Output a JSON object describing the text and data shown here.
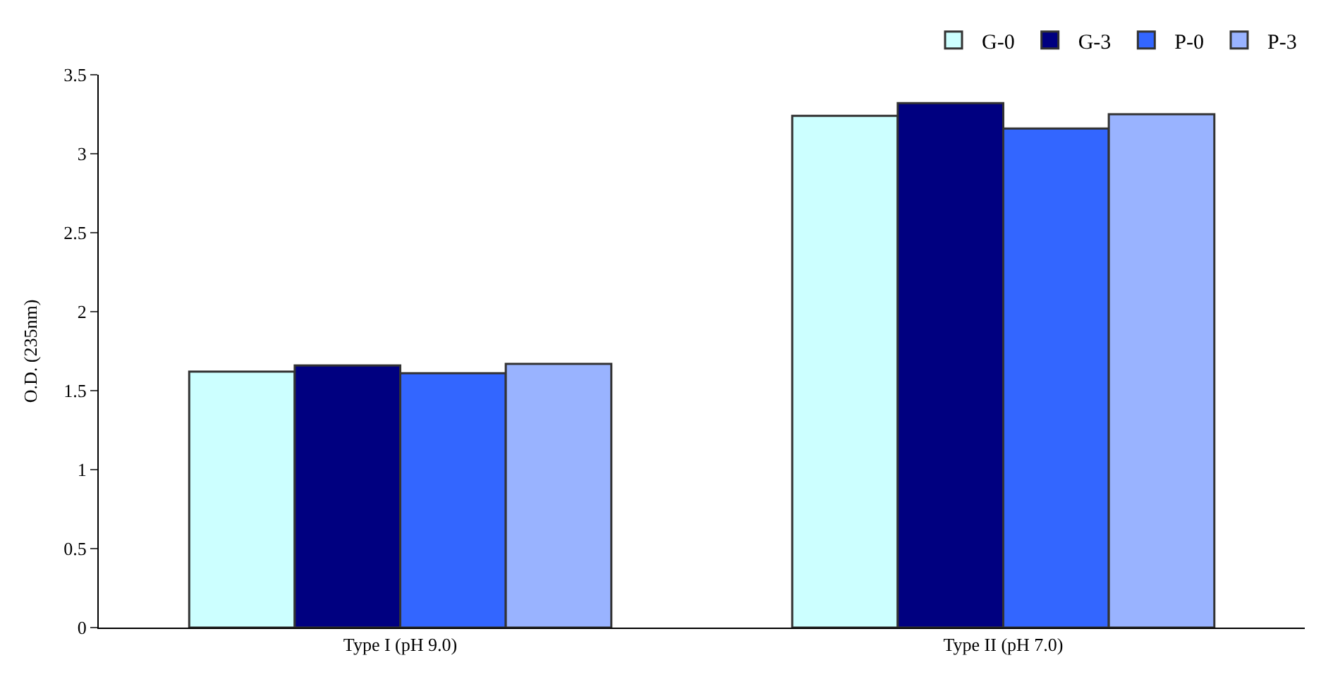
{
  "chart_data": {
    "type": "bar",
    "ylabel": "O.D. (235nm)",
    "categories": [
      "Type I (pH 9.0)",
      "Type II (pH 7.0)"
    ],
    "series": [
      {
        "name": "G-0",
        "color": "#ccffff",
        "values": [
          1.62,
          3.24
        ]
      },
      {
        "name": "G-3",
        "color": "#000080",
        "values": [
          1.66,
          3.32
        ]
      },
      {
        "name": "P-0",
        "color": "#3366ff",
        "values": [
          1.61,
          3.16
        ]
      },
      {
        "name": "P-3",
        "color": "#99b3ff",
        "values": [
          1.67,
          3.25
        ]
      }
    ],
    "ylim": [
      0,
      3.5
    ],
    "yticks": [
      0,
      0.5,
      1,
      1.5,
      2,
      2.5,
      3,
      3.5
    ],
    "legend": "top right"
  }
}
